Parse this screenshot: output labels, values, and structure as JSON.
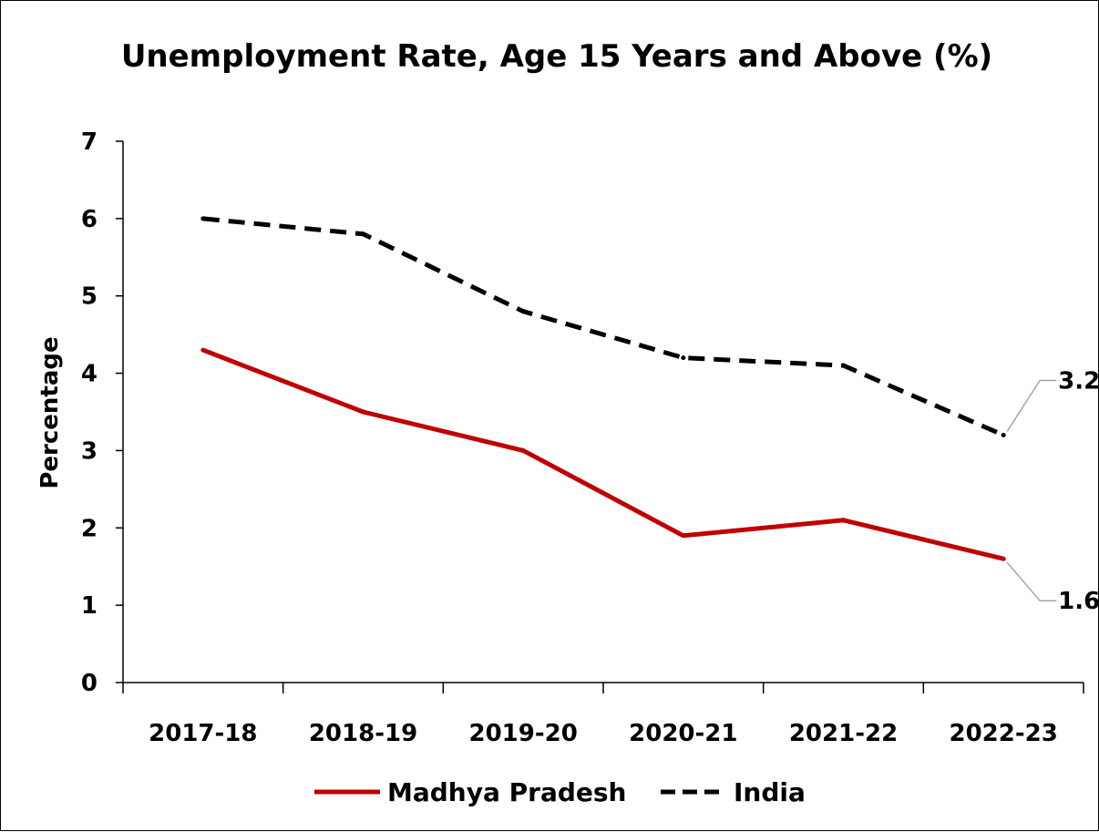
{
  "chart_data": {
    "type": "line",
    "title": "Unemployment Rate, Age 15 Years and Above (%)",
    "xlabel": "",
    "ylabel": "Percentage",
    "categories": [
      "2017-18",
      "2018-19",
      "2019-20",
      "2020-21",
      "2021-22",
      "2022-23"
    ],
    "ylim": [
      0,
      7
    ],
    "yticks": [
      "0",
      "1",
      "2",
      "3",
      "4",
      "5",
      "6",
      "7"
    ],
    "grid": false,
    "legend_position": "bottom",
    "series": [
      {
        "name": "Madhya Pradesh",
        "values": [
          4.3,
          3.5,
          3.0,
          1.9,
          2.1,
          1.6
        ],
        "color": "#c00000",
        "style": "solid"
      },
      {
        "name": "India",
        "values": [
          6.0,
          5.8,
          4.8,
          4.2,
          4.1,
          3.2
        ],
        "color": "#000000",
        "style": "dashed"
      }
    ],
    "annotations": [
      {
        "series": "India",
        "category": "2022-23",
        "label": "3.2"
      },
      {
        "series": "Madhya Pradesh",
        "category": "2022-23",
        "label": "1.6"
      }
    ]
  }
}
